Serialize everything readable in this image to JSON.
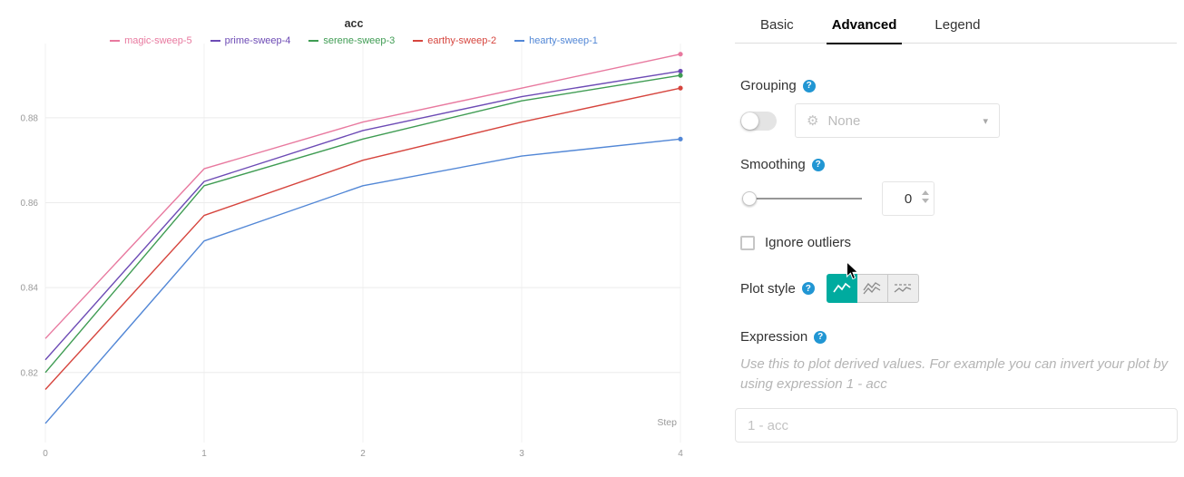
{
  "chart_data": {
    "type": "line",
    "title": "acc",
    "xlabel": "Step",
    "ylabel": "",
    "x": [
      0,
      1,
      2,
      3,
      4
    ],
    "x_ticks": [
      "0",
      "1",
      "2",
      "3",
      "4"
    ],
    "y_ticks": [
      "0.82",
      "0.84",
      "0.86",
      "0.88"
    ],
    "y_tick_values": [
      0.82,
      0.84,
      0.86,
      0.88
    ],
    "xlim": [
      0,
      4
    ],
    "ylim": [
      0.8035,
      0.8975
    ],
    "grid": "on",
    "legend_position": "top",
    "series": [
      {
        "name": "magic-sweep-5",
        "color": "#e8799f",
        "values": [
          0.828,
          0.868,
          0.879,
          0.887,
          0.895
        ]
      },
      {
        "name": "prime-sweep-4",
        "color": "#6d4bb5",
        "values": [
          0.823,
          0.865,
          0.877,
          0.885,
          0.891
        ]
      },
      {
        "name": "serene-sweep-3",
        "color": "#3f9c53",
        "values": [
          0.82,
          0.864,
          0.875,
          0.884,
          0.89
        ]
      },
      {
        "name": "earthy-sweep-2",
        "color": "#d6453e",
        "values": [
          0.816,
          0.857,
          0.87,
          0.879,
          0.887
        ]
      },
      {
        "name": "hearty-sweep-1",
        "color": "#5287d6",
        "values": [
          0.808,
          0.851,
          0.864,
          0.871,
          0.875
        ]
      }
    ]
  },
  "panel": {
    "help_icon": "?",
    "tabs": [
      {
        "label": "Basic",
        "active": false
      },
      {
        "label": "Advanced",
        "active": true
      },
      {
        "label": "Legend",
        "active": false
      }
    ],
    "grouping": {
      "label": "Grouping",
      "toggle_on": false,
      "dropdown_value": "None",
      "gear_icon": "⚙",
      "caret_icon": "▾"
    },
    "smoothing": {
      "label": "Smoothing",
      "value": "0",
      "slider_position": 0
    },
    "ignore_outliers": {
      "label": "Ignore outliers",
      "checked": false
    },
    "plot_style": {
      "label": "Plot style",
      "options": [
        "line",
        "min-max-lines",
        "mean-with-range"
      ],
      "selected_index": 0,
      "active_color": "#00ab9f"
    },
    "expression": {
      "label": "Expression",
      "help_text": "Use this to plot derived values. For example you can invert your plot by using expression 1 - acc",
      "input_placeholder": "1 - acc"
    }
  }
}
